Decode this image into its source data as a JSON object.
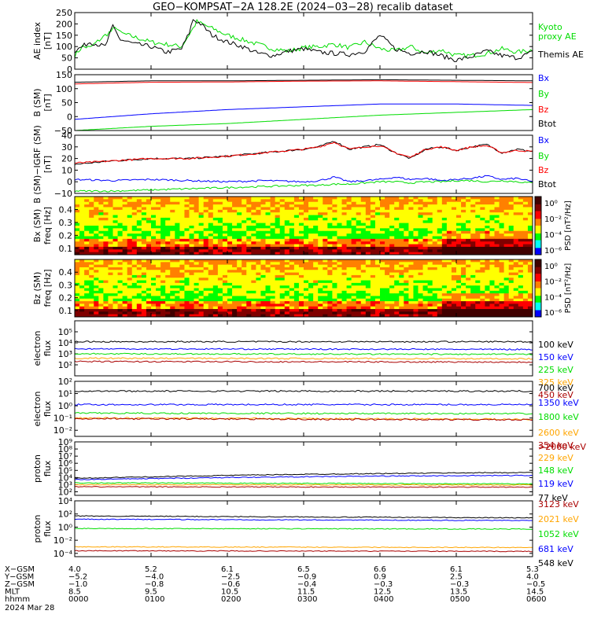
{
  "title": "GEO−KOMPSAT−2A 128.2E (2024−03−28) recalib dataset",
  "colors": {
    "black": "#000000",
    "red": "#ff0000",
    "green": "#00dd00",
    "blue": "#0000ff",
    "orange": "#ffa500",
    "darkred": "#aa0000",
    "cbar": [
      "#ffffff",
      "#ff00ff",
      "#0000ff",
      "#00ffff",
      "#00ff00",
      "#ffff00",
      "#ff8000",
      "#ff0000",
      "#800000",
      "#400000"
    ]
  },
  "chart_data": [
    {
      "type": "line",
      "ylabel": [
        "AE index",
        "[nT]"
      ],
      "yscale": "linear",
      "ylim": [
        0,
        250
      ],
      "yticks": [
        "0",
        "50",
        "100",
        "150",
        "200",
        "250"
      ],
      "legend": [
        "Kyoto",
        "proxy AE",
        "Themis AE"
      ],
      "series": [
        {
          "name": "Kyoto proxy AE",
          "color": "#00dd00",
          "x": [
            0,
            0.1,
            0.2,
            0.4,
            0.55,
            0.6,
            0.8,
            1.0,
            1.2,
            1.4,
            1.55,
            1.6,
            1.8,
            2.0,
            2.2,
            2.4,
            2.6,
            2.8,
            3.0,
            3.2,
            3.4,
            3.6,
            3.8,
            4.0,
            4.2,
            4.4,
            4.6,
            4.8,
            5.0,
            5.2,
            5.4,
            5.6,
            5.8,
            6.0
          ],
          "y": [
            60,
            100,
            95,
            150,
            185,
            160,
            140,
            120,
            110,
            100,
            180,
            210,
            180,
            150,
            130,
            110,
            90,
            80,
            95,
            100,
            110,
            95,
            120,
            90,
            80,
            100,
            70,
            85,
            60,
            60,
            70,
            90,
            75,
            85
          ]
        },
        {
          "name": "Themis AE",
          "color": "#000000",
          "x": [
            0,
            0.1,
            0.2,
            0.4,
            0.5,
            0.6,
            0.8,
            1.0,
            1.2,
            1.4,
            1.5,
            1.55,
            1.65,
            1.8,
            2.0,
            2.2,
            2.4,
            2.6,
            2.8,
            3.0,
            3.2,
            3.4,
            3.6,
            3.8,
            4.0,
            4.2,
            4.4,
            4.6,
            4.8,
            5.0,
            5.2,
            5.4,
            5.6,
            5.8,
            6.0
          ],
          "y": [
            80,
            100,
            120,
            100,
            190,
            130,
            110,
            100,
            75,
            90,
            160,
            220,
            200,
            150,
            120,
            100,
            70,
            60,
            80,
            90,
            75,
            70,
            65,
            80,
            150,
            90,
            70,
            80,
            60,
            40,
            55,
            80,
            60,
            50,
            75
          ]
        }
      ],
      "right_labels": [
        {
          "text": "Kyoto",
          "color": "#00dd00"
        },
        {
          "text": "proxy AE",
          "color": "#00dd00"
        },
        {
          "text": "Themis AE",
          "color": "#000000"
        }
      ]
    },
    {
      "type": "line",
      "ylabel": [
        "B (SM)",
        "[nT]"
      ],
      "yscale": "linear",
      "ylim": [
        -50,
        150
      ],
      "yticks": [
        "−50",
        "0",
        "50",
        "100",
        "150"
      ],
      "series": [
        {
          "name": "Btot",
          "color": "#000000",
          "x": [
            0,
            1,
            2,
            3,
            4,
            5,
            6
          ],
          "y": [
            123,
            128,
            128,
            130,
            132,
            130,
            128
          ]
        },
        {
          "name": "Bz",
          "color": "#ff0000",
          "x": [
            0,
            1,
            2,
            3,
            4,
            5,
            6
          ],
          "y": [
            117,
            123,
            124,
            127,
            128,
            125,
            122
          ]
        },
        {
          "name": "Bx",
          "color": "#0000ff",
          "x": [
            0,
            1,
            2,
            3,
            4,
            5,
            6
          ],
          "y": [
            -10,
            10,
            25,
            35,
            45,
            45,
            40
          ]
        },
        {
          "name": "By",
          "color": "#00dd00",
          "x": [
            0,
            1,
            2,
            3,
            4,
            5,
            6
          ],
          "y": [
            -50,
            -35,
            -25,
            -10,
            5,
            15,
            25
          ]
        }
      ],
      "right_labels": [
        {
          "text": "Bx",
          "color": "#0000ff"
        },
        {
          "text": "By",
          "color": "#00dd00"
        },
        {
          "text": "Bz",
          "color": "#ff0000"
        },
        {
          "text": "Btot",
          "color": "#000000"
        }
      ]
    },
    {
      "type": "line",
      "ylabel": [
        "B (SM)−IGRF (SM)",
        "[nT]"
      ],
      "yscale": "linear",
      "ylim": [
        -10,
        40
      ],
      "yticks": [
        "−10",
        "0",
        "10",
        "20",
        "30",
        "40"
      ],
      "series": [
        {
          "name": "Btot",
          "color": "#000000",
          "x": [
            0,
            0.5,
            1,
            1.5,
            2,
            2.5,
            3,
            3.2,
            3.4,
            3.6,
            3.8,
            4,
            4.2,
            4.4,
            4.6,
            4.8,
            5,
            5.2,
            5.4,
            5.6,
            5.8,
            6
          ],
          "y": [
            15,
            18,
            20,
            20,
            22,
            25,
            28,
            30,
            35,
            28,
            30,
            32,
            25,
            20,
            28,
            30,
            27,
            30,
            32,
            25,
            28,
            26
          ]
        },
        {
          "name": "Bz",
          "color": "#ff0000",
          "x": [
            0,
            0.5,
            1,
            1.5,
            2,
            2.5,
            3,
            3.2,
            3.4,
            3.6,
            3.8,
            4,
            4.2,
            4.4,
            4.6,
            4.8,
            5,
            5.2,
            5.4,
            5.6,
            5.8,
            6
          ],
          "y": [
            16,
            18,
            20,
            20,
            22,
            25,
            28,
            30,
            34,
            28,
            30,
            31,
            25,
            21,
            28,
            30,
            27,
            30,
            31,
            25,
            27,
            26
          ]
        },
        {
          "name": "Bx",
          "color": "#0000ff",
          "x": [
            0,
            0.5,
            1,
            1.5,
            2,
            2.5,
            3,
            3.2,
            3.4,
            3.6,
            3.8,
            4,
            4.2,
            4.4,
            4.6,
            4.8,
            5,
            5.2,
            5.4,
            5.6,
            5.8,
            6
          ],
          "y": [
            2,
            1,
            2,
            1,
            0,
            1,
            0,
            1,
            4,
            0,
            1,
            2,
            4,
            2,
            3,
            1,
            2,
            3,
            5,
            2,
            3,
            0
          ]
        },
        {
          "name": "By",
          "color": "#00dd00",
          "x": [
            0,
            0.5,
            1,
            1.5,
            2,
            2.5,
            3,
            3.2,
            3.4,
            3.6,
            3.8,
            4,
            4.2,
            4.4,
            4.6,
            4.8,
            5,
            5.2,
            5.4,
            5.6,
            5.8,
            6
          ],
          "y": [
            -8,
            -8,
            -7,
            -6,
            -5,
            -4,
            -3,
            -3,
            -2,
            -2,
            -1,
            0,
            0,
            -1,
            0,
            0,
            1,
            1,
            0,
            1,
            0,
            -1
          ]
        }
      ],
      "right_labels": [
        {
          "text": "Bx",
          "color": "#0000ff"
        },
        {
          "text": "By",
          "color": "#00dd00"
        },
        {
          "text": "Bz",
          "color": "#ff0000"
        },
        {
          "text": "Btot",
          "color": "#000000"
        }
      ]
    },
    {
      "type": "heatmap",
      "ylabel": [
        "Bx (SM)",
        "freq [Hz]"
      ],
      "ylim": [
        0.05,
        0.5
      ],
      "yticks": [
        "0.1",
        "0.2",
        "0.3",
        "0.4"
      ],
      "ytick_values": [
        0.1,
        0.2,
        0.3,
        0.4
      ],
      "colorbar": {
        "title": "PSD [nT²/Hz]",
        "ticks": [
          "10⁰",
          "10⁻²",
          "10⁻⁴",
          "10⁻⁶"
        ]
      }
    },
    {
      "type": "heatmap",
      "ylabel": [
        "Bz (SM)",
        "freq [Hz]"
      ],
      "ylim": [
        0.05,
        0.5
      ],
      "yticks": [
        "0.1",
        "0.2",
        "0.3",
        "0.4"
      ],
      "ytick_values": [
        0.1,
        0.2,
        0.3,
        0.4
      ],
      "colorbar": {
        "title": "PSD [nT²/Hz]",
        "ticks": [
          "10⁰",
          "10⁻²",
          "10⁻⁴",
          "10⁻⁶"
        ]
      }
    },
    {
      "type": "line",
      "ylabel": [
        "electron",
        "flux"
      ],
      "yscale": "log",
      "ylim": [
        1,
        6
      ],
      "yticks": [
        "10²",
        "10³",
        "10⁴",
        "10⁵"
      ],
      "ytick_values": [
        2,
        3,
        4,
        5
      ],
      "series": [
        {
          "name": "100 keV",
          "color": "#000000",
          "x": [
            0,
            6
          ],
          "y": [
            4.1,
            4.1
          ]
        },
        {
          "name": "150 keV",
          "color": "#0000ff",
          "x": [
            0,
            6
          ],
          "y": [
            3.45,
            3.4
          ]
        },
        {
          "name": "225 keV",
          "color": "#00dd00",
          "x": [
            0,
            6
          ],
          "y": [
            3.0,
            2.95
          ]
        },
        {
          "name": "325 keV",
          "color": "#ffa500",
          "x": [
            0,
            6
          ],
          "y": [
            2.6,
            2.55
          ]
        },
        {
          "name": "450 keV",
          "color": "#aa0000",
          "x": [
            0,
            6
          ],
          "y": [
            2.3,
            2.25
          ]
        }
      ],
      "right_labels": [
        {
          "text": "100 keV",
          "color": "#000000"
        },
        {
          "text": "150 keV",
          "color": "#0000ff"
        },
        {
          "text": "225 keV",
          "color": "#00dd00"
        },
        {
          "text": "325 keV",
          "color": "#ffa500"
        },
        {
          "text": "450 keV",
          "color": "#aa0000"
        }
      ]
    },
    {
      "type": "line",
      "ylabel": [
        "electron",
        "flux"
      ],
      "yscale": "log",
      "ylim": [
        -2.5,
        2
      ],
      "yticks": [
        "10⁻²",
        "10⁻¹",
        "10⁰",
        "10¹",
        "10²"
      ],
      "ytick_values": [
        -2,
        -1,
        0,
        1,
        2
      ],
      "series": [
        {
          "name": "700 keV",
          "color": "#000000",
          "x": [
            0,
            6
          ],
          "y": [
            1.2,
            1.2
          ]
        },
        {
          "name": "1350 keV",
          "color": "#0000ff",
          "x": [
            0,
            6
          ],
          "y": [
            0.1,
            0.1
          ]
        },
        {
          "name": "1800 keV",
          "color": "#00dd00",
          "x": [
            0,
            6
          ],
          "y": [
            -0.6,
            -0.65
          ]
        },
        {
          "name": "2600 keV",
          "color": "#ffa500",
          "x": [
            0,
            6
          ],
          "y": [
            -1.0,
            -1.1
          ]
        },
        {
          "name": ">2000 keV",
          "color": "#aa0000",
          "x": [
            0,
            6
          ],
          "y": [
            -1.05,
            -1.15
          ]
        }
      ],
      "right_labels": [
        {
          "text": "700 keV",
          "color": "#000000"
        },
        {
          "text": "1350 keV",
          "color": "#0000ff"
        },
        {
          "text": "1800 keV",
          "color": "#00dd00"
        },
        {
          "text": "2600 keV",
          "color": "#ffa500"
        },
        {
          "text": ">2000 keV",
          "color": "#aa0000"
        }
      ]
    },
    {
      "type": "line",
      "ylabel": [
        "proton",
        "flux"
      ],
      "yscale": "log",
      "ylim": [
        1.5,
        9
      ],
      "yticks": [
        "10²",
        "10³",
        "10⁴",
        "10⁵",
        "10⁶",
        "10⁷",
        "10⁸",
        "10⁹"
      ],
      "ytick_values": [
        2,
        3,
        4,
        5,
        6,
        7,
        8,
        9
      ],
      "series": [
        {
          "name": "77 keV",
          "color": "#000000",
          "x": [
            0,
            1,
            2,
            3,
            4,
            5,
            6
          ],
          "y": [
            3.9,
            4.1,
            4.3,
            4.45,
            4.55,
            4.65,
            4.7
          ]
        },
        {
          "name": "119 keV",
          "color": "#0000ff",
          "x": [
            0,
            1,
            2,
            3,
            4,
            5,
            6
          ],
          "y": [
            3.7,
            3.85,
            4.0,
            4.1,
            4.2,
            4.25,
            4.3
          ]
        },
        {
          "name": "148 keV",
          "color": "#00dd00",
          "x": [
            0,
            6
          ],
          "y": [
            3.25,
            3.1
          ]
        },
        {
          "name": "229 keV",
          "color": "#ffa500",
          "x": [
            0,
            6
          ],
          "y": [
            3.0,
            2.95
          ]
        },
        {
          "name": "354 keV",
          "color": "#aa0000",
          "x": [
            0,
            6
          ],
          "y": [
            2.7,
            2.65
          ]
        }
      ],
      "right_labels": [
        {
          "text": "354 keV",
          "color": "#aa0000"
        },
        {
          "text": "229 keV",
          "color": "#ffa500"
        },
        {
          "text": "148 keV",
          "color": "#00dd00"
        },
        {
          "text": "119 keV",
          "color": "#0000ff"
        },
        {
          "text": "77 keV",
          "color": "#000000"
        }
      ]
    },
    {
      "type": "line",
      "ylabel": [
        "proton",
        "flux"
      ],
      "yscale": "log",
      "ylim": [
        -4.5,
        4
      ],
      "yticks": [
        "10⁻⁴",
        "10⁻²",
        "10⁰",
        "10²",
        "10⁴"
      ],
      "ytick_values": [
        -4,
        -2,
        0,
        2,
        4
      ],
      "series": [
        {
          "name": "548 keV",
          "color": "#000000",
          "x": [
            0,
            6
          ],
          "y": [
            1.7,
            1.4
          ]
        },
        {
          "name": "681 keV",
          "color": "#0000ff",
          "x": [
            0,
            6
          ],
          "y": [
            1.2,
            1.0
          ]
        },
        {
          "name": "1052 keV",
          "color": "#00dd00",
          "x": [
            0,
            6
          ],
          "y": [
            -0.2,
            -0.3
          ]
        },
        {
          "name": "2021 keV",
          "color": "#ffa500",
          "x": [
            0,
            6
          ],
          "y": [
            -3.0,
            -3.1
          ]
        },
        {
          "name": "3123 keV",
          "color": "#aa0000",
          "x": [
            0,
            6
          ],
          "y": [
            -3.6,
            -3.7
          ]
        }
      ],
      "right_labels": [
        {
          "text": "3123 keV",
          "color": "#aa0000"
        },
        {
          "text": "2021 keV",
          "color": "#ffa500"
        },
        {
          "text": "1052 keV",
          "color": "#00dd00"
        },
        {
          "text": "681 keV",
          "color": "#0000ff"
        },
        {
          "text": "548 keV",
          "color": "#000000"
        }
      ]
    }
  ],
  "orbit_table": {
    "row_labels": [
      "X−GSM",
      "Y−GSM",
      "Z−GSM",
      "MLT",
      "hhmm"
    ],
    "columns": [
      [
        "4.0",
        "−5.2",
        "−1.0",
        "8.5",
        "0000"
      ],
      [
        "5.2",
        "−4.0",
        "−0.8",
        "9.5",
        "0100"
      ],
      [
        "6.1",
        "−2.5",
        "−0.6",
        "10.5",
        "0200"
      ],
      [
        "6.5",
        "−0.9",
        "−0.4",
        "11.5",
        "0300"
      ],
      [
        "6.6",
        "0.9",
        "−0.3",
        "12.5",
        "0400"
      ],
      [
        "6.1",
        "2.5",
        "−0.3",
        "13.5",
        "0500"
      ],
      [
        "5.3",
        "4.0",
        "−0.5",
        "14.5",
        "0600"
      ]
    ],
    "date": "2024 Mar 28"
  }
}
